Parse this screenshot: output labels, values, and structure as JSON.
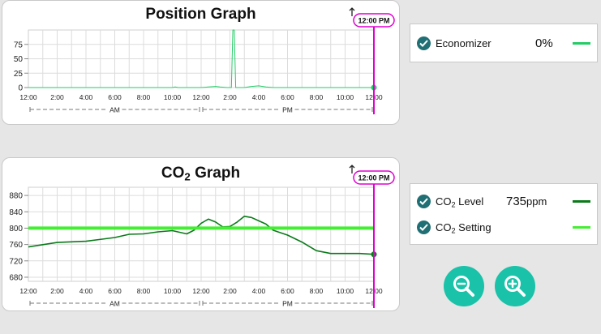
{
  "position_graph": {
    "title": "Position Graph",
    "marker_label": "12:00 PM",
    "legend": {
      "label": "Economizer",
      "value": "0%",
      "color": "#22cc66"
    }
  },
  "co2_graph": {
    "title_main": "CO",
    "title_sub": "2",
    "title_rest": " Graph",
    "marker_label": "12:00 PM",
    "legend": [
      {
        "label_main": "CO",
        "label_sub": "2",
        "label_rest": " Level",
        "value": "735",
        "unit": "ppm",
        "color": "#0a7a1a"
      },
      {
        "label_main": "CO",
        "label_sub": "2",
        "label_rest": " Setting",
        "value": "",
        "unit": "",
        "color": "#44ee33"
      }
    ]
  },
  "zoom": {
    "out_icon": "zoom-out-icon",
    "in_icon": "zoom-in-icon"
  },
  "chart_data": [
    {
      "type": "line",
      "title": "Position Graph",
      "x_ticks": [
        "12:00",
        "2:00",
        "4:00",
        "6:00",
        "8:00",
        "10:00",
        "12:00",
        "2:00",
        "4:00",
        "6:00",
        "8:00",
        "10:00",
        "12:00"
      ],
      "period_labels": [
        "AM",
        "PM"
      ],
      "ylim": [
        0,
        100
      ],
      "y_ticks": [
        0,
        25,
        50,
        75
      ],
      "grid": true,
      "series": [
        {
          "name": "Economizer",
          "color": "#22cc66",
          "x": [
            0,
            2,
            4,
            6,
            8,
            10,
            10.2,
            10.4,
            11,
            12,
            12.5,
            13,
            13.3,
            13.8,
            14.1,
            14.2,
            14.3,
            14.4,
            14.6,
            15,
            15.5,
            16,
            16.5,
            17,
            18,
            20,
            22,
            24
          ],
          "y": [
            0,
            0,
            0,
            0,
            0,
            0,
            1,
            0,
            0,
            0,
            1,
            2,
            1,
            0,
            0,
            100,
            100,
            0,
            0,
            0,
            2,
            3,
            1,
            0,
            0,
            0,
            0,
            0
          ]
        }
      ]
    },
    {
      "type": "line",
      "title": "CO2 Graph",
      "x_ticks": [
        "12:00",
        "2:00",
        "4:00",
        "6:00",
        "8:00",
        "10:00",
        "12:00",
        "2:00",
        "4:00",
        "6:00",
        "8:00",
        "10:00",
        "12:00"
      ],
      "period_labels": [
        "AM",
        "PM"
      ],
      "ylim": [
        670,
        900
      ],
      "y_ticks": [
        680,
        720,
        760,
        800,
        840,
        880
      ],
      "grid": true,
      "series": [
        {
          "name": "CO2 Level",
          "color": "#0a7a1a",
          "x": [
            0,
            2,
            4,
            6,
            7,
            8,
            9,
            10,
            11,
            11.5,
            12,
            12.5,
            13,
            13.5,
            14,
            14.5,
            15,
            15.5,
            16,
            16.5,
            17,
            18,
            19,
            20,
            21,
            22,
            23,
            24
          ],
          "y": [
            754,
            765,
            768,
            777,
            785,
            786,
            791,
            794,
            786,
            795,
            812,
            822,
            815,
            803,
            804,
            815,
            829,
            826,
            818,
            810,
            795,
            783,
            766,
            745,
            738,
            738,
            738,
            736
          ]
        },
        {
          "name": "CO2 Setting",
          "color": "#44ee33",
          "x": [
            0,
            24
          ],
          "y": [
            800,
            800
          ]
        }
      ]
    }
  ]
}
